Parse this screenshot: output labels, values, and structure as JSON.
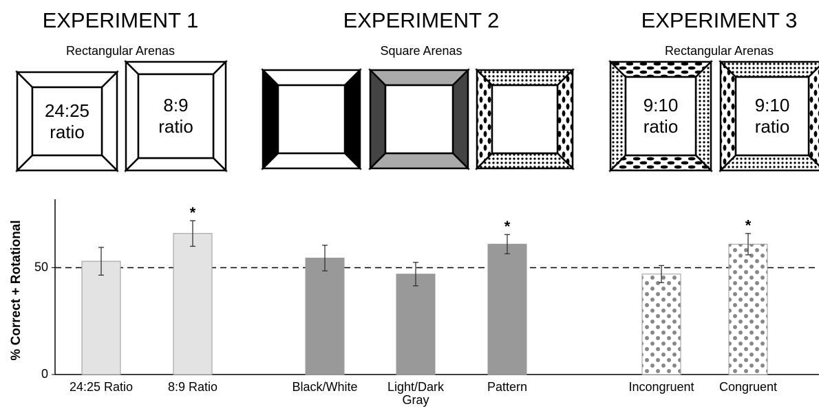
{
  "panels": [
    {
      "title": "EXPERIMENT 1",
      "subtitle": "Rectangular Arenas",
      "arenas": [
        {
          "label": "24:25 ratio"
        },
        {
          "label": "8:9 ratio"
        }
      ]
    },
    {
      "title": "EXPERIMENT 2",
      "subtitle": "Square Arenas"
    },
    {
      "title": "EXPERIMENT 3",
      "subtitle": "Rectangular Arenas",
      "arenas": [
        {
          "label": "9:10 ratio"
        },
        {
          "label": "9:10 ratio"
        }
      ]
    }
  ],
  "chart_data": {
    "type": "bar",
    "y_label": "% Correct + Rotational",
    "categories": [
      "24:25 Ratio",
      "8:9 Ratio",
      "Black/White",
      "Light/Dark Gray",
      "Pattern",
      "Incongruent",
      "Congruent"
    ],
    "values": [
      53,
      66,
      54.5,
      47,
      61,
      47,
      61
    ],
    "errors": [
      6.5,
      6,
      6,
      5.5,
      4.5,
      4,
      5
    ],
    "colors": [
      "#e3e3e3",
      "#e3e3e3",
      "#999999",
      "#999999",
      "#999999",
      "url(#bardots)",
      "url(#bardots)"
    ],
    "annotations": [
      {
        "index": 1,
        "text": "*"
      },
      {
        "index": 4,
        "text": "*"
      },
      {
        "index": 6,
        "text": "*"
      }
    ],
    "reference_line": 50,
    "ylim": [
      0,
      82
    ],
    "yticks": [
      0,
      50
    ]
  }
}
